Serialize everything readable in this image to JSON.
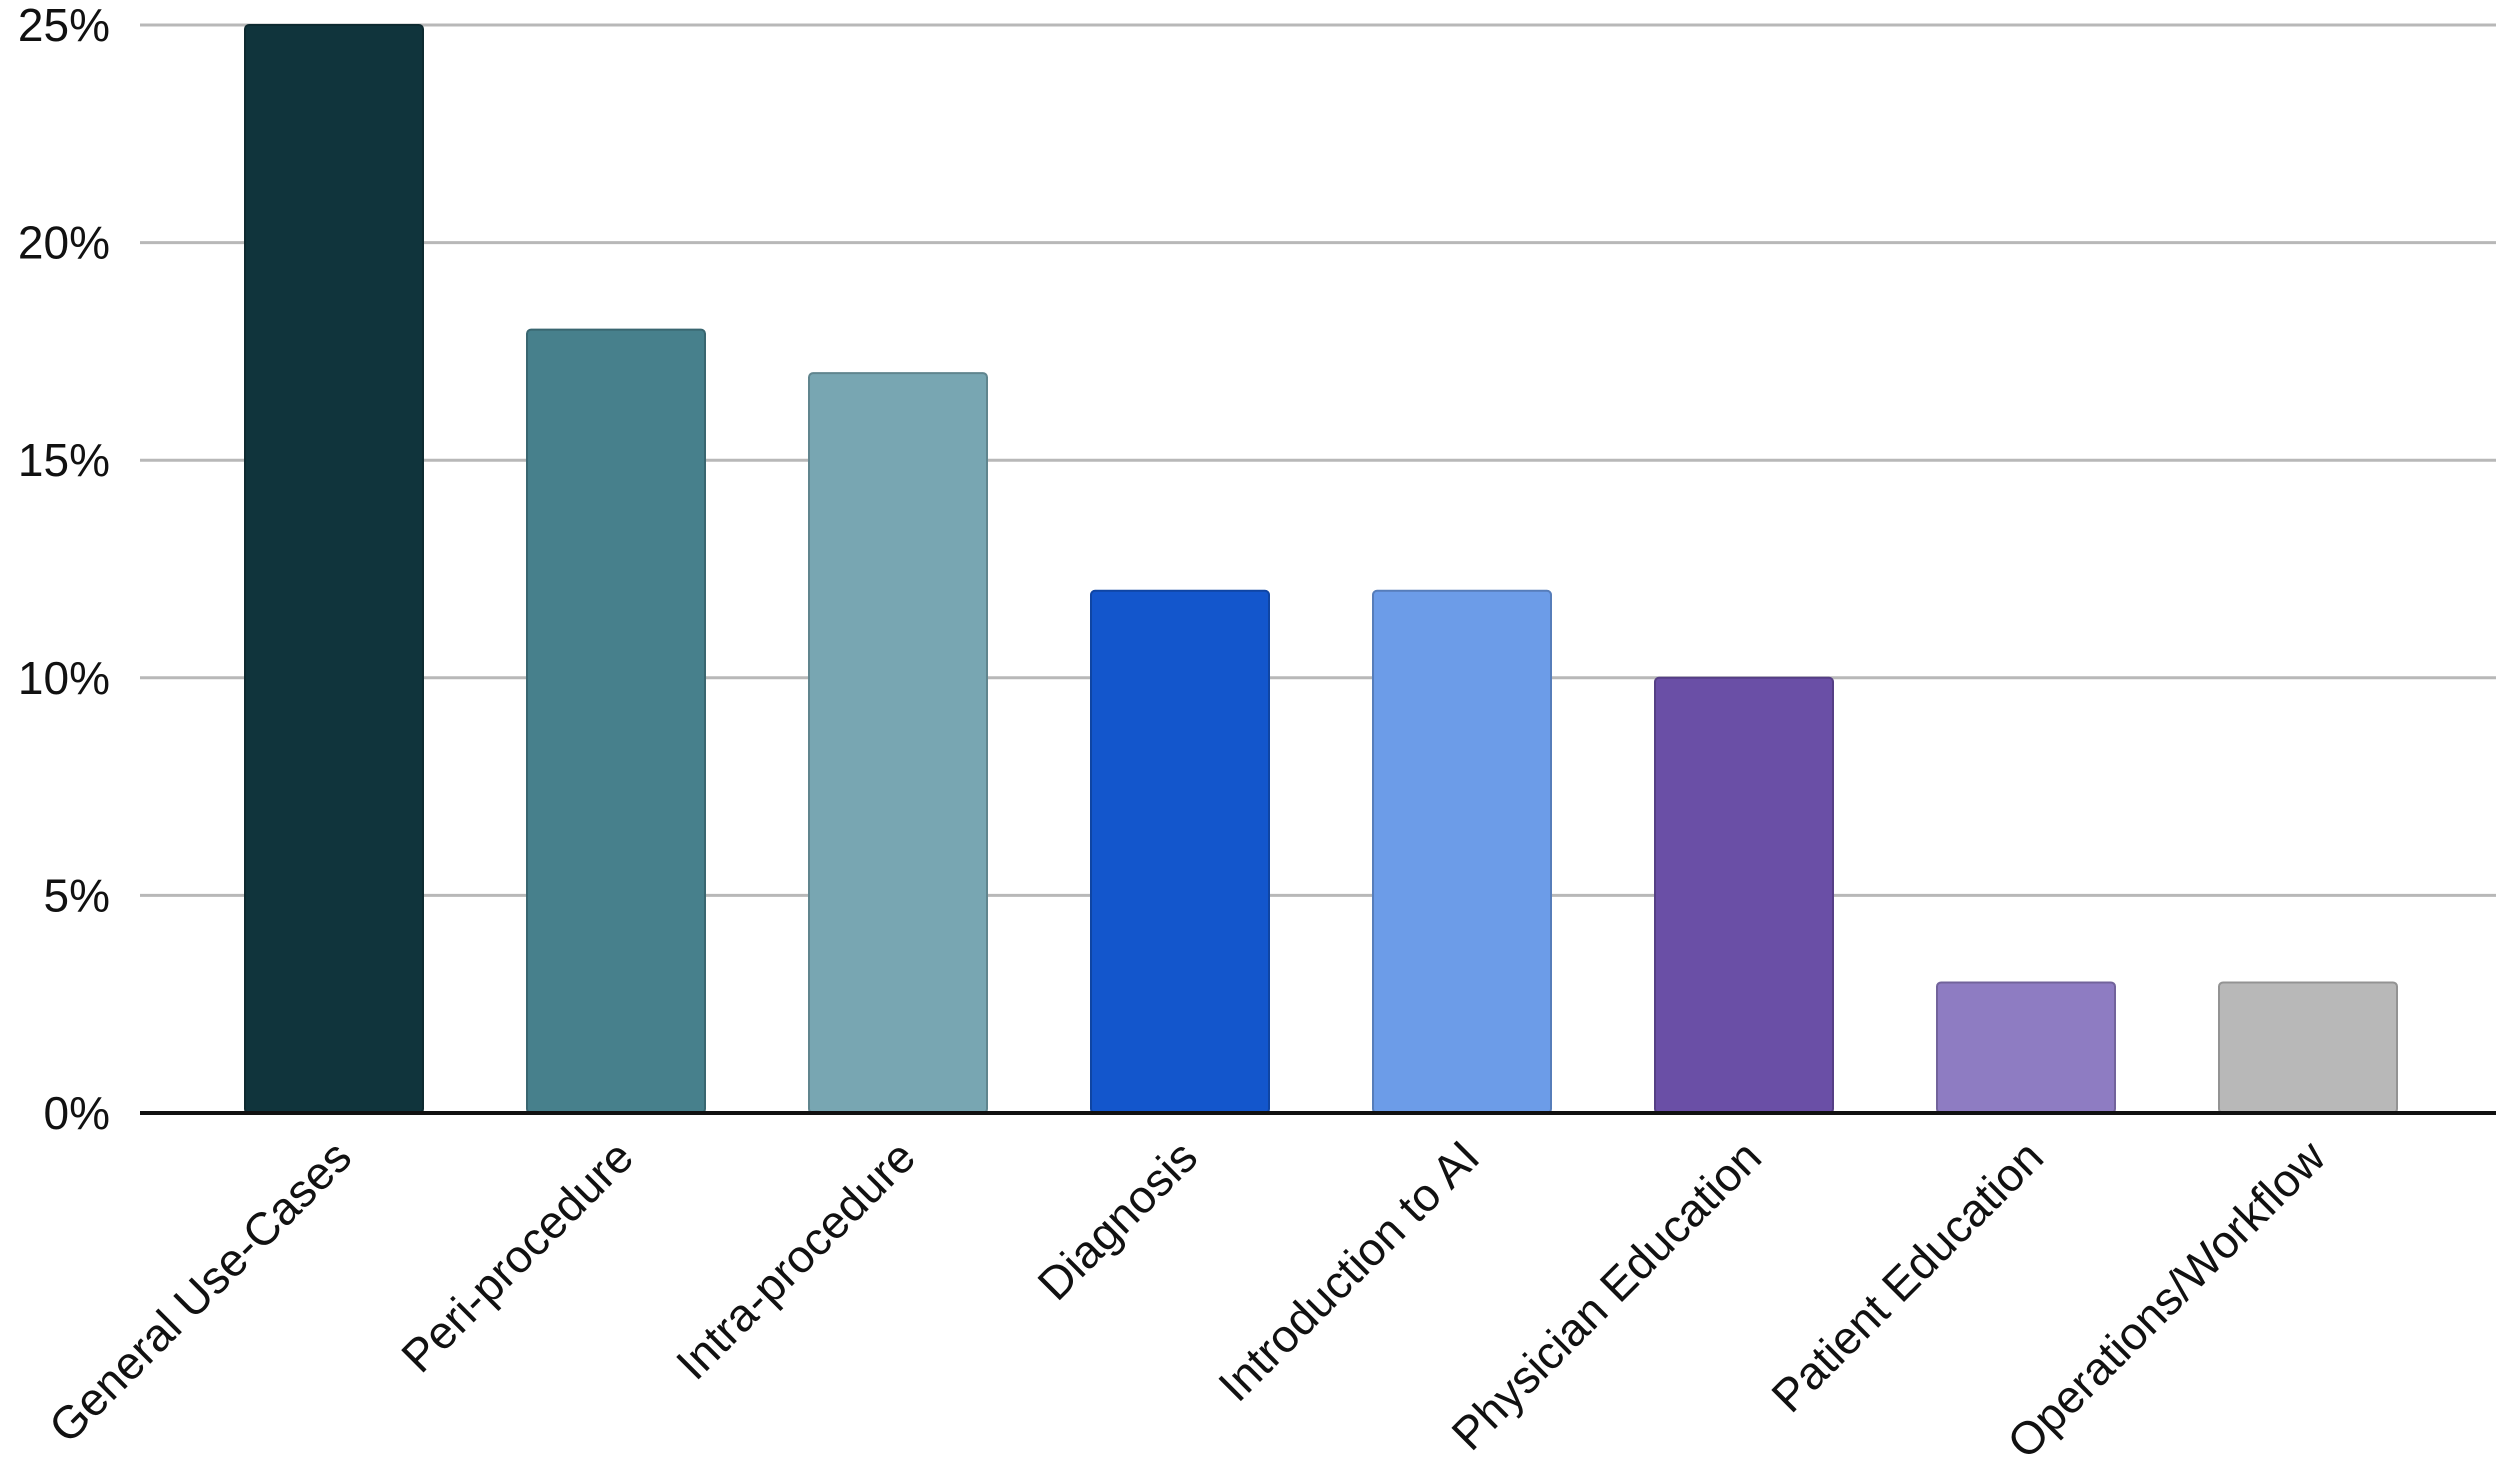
{
  "chart_data": {
    "type": "bar",
    "title": "",
    "xlabel": "",
    "ylabel": "",
    "categories": [
      "General Use-Cases",
      "Peri-procedure",
      "Intra-procedure",
      "Diagnosis",
      "Introduction to AI",
      "Physician Education",
      "Patient Education",
      "Operations/Workflow"
    ],
    "values": [
      25,
      18,
      17,
      12,
      12,
      10,
      3,
      3
    ],
    "value_unit": "%",
    "colors": [
      "#10343c",
      "#47808c",
      "#78a6b2",
      "#1356cc",
      "#6c9ce8",
      "#6a4fa6",
      "#8e7cc2",
      "#b8b8b8"
    ],
    "ylim": [
      0,
      25
    ],
    "yticks": [
      0,
      5,
      10,
      15,
      20,
      25
    ],
    "ytick_labels": [
      "0%",
      "5%",
      "10%",
      "15%",
      "20%",
      "25%"
    ],
    "grid": true,
    "legend": "none"
  }
}
